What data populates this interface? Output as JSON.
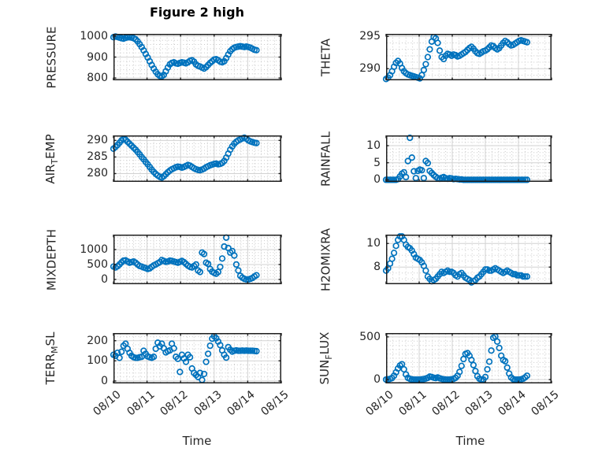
{
  "figure": {
    "title": "Figure 2 high",
    "xlabel": "Time",
    "xticklabels": [
      "08/10",
      "08/11",
      "08/12",
      "08/13",
      "08/14",
      "08/15"
    ],
    "xlim_days": [
      0,
      5
    ],
    "xminor_step_days": 0.2,
    "marker_color": "#0072BD",
    "text_color": "#262626",
    "axis_color": "#1f1f1f",
    "grid_color": "#d2d2d2",
    "minor_grid_color": "#c9c9c9",
    "background": "#ffffff"
  },
  "chart_data": [
    {
      "type": "scatter",
      "name": "PRESSURE",
      "ylabel_parts": {
        "pre": "PRESSURE",
        "sub": "",
        "post": ""
      },
      "position": {
        "row": 0,
        "col": "left"
      },
      "show_xticklabels": false,
      "ylim": [
        789,
        1011
      ],
      "yticks": [
        800,
        900,
        1000
      ],
      "yminor_step": 20,
      "x_start": 0,
      "x_step": 0.06,
      "values": [
        995,
        998,
        996,
        993,
        990,
        988,
        992,
        994,
        995,
        993,
        990,
        985,
        975,
        962,
        948,
        932,
        915,
        898,
        880,
        862,
        845,
        830,
        818,
        810,
        808,
        815,
        832,
        850,
        865,
        872,
        875,
        870,
        868,
        872,
        875,
        873,
        870,
        875,
        882,
        885,
        878,
        865,
        858,
        855,
        850,
        845,
        852,
        862,
        872,
        880,
        888,
        890,
        885,
        878,
        875,
        880,
        895,
        912,
        928,
        938,
        945,
        948,
        950,
        952,
        950,
        948,
        950,
        948,
        945,
        940,
        935,
        933
      ]
    },
    {
      "type": "scatter",
      "name": "THETA",
      "ylabel_parts": {
        "pre": "THETA",
        "sub": "",
        "post": ""
      },
      "position": {
        "row": 0,
        "col": "right"
      },
      "show_xticklabels": false,
      "ylim": [
        288.2,
        295.4
      ],
      "yticks": [
        290,
        295
      ],
      "yminor_step": 1,
      "x_start": 0,
      "x_step": 0.06,
      "values": [
        288.4,
        288.6,
        289.0,
        289.6,
        290.3,
        290.9,
        291.2,
        290.8,
        290.1,
        289.6,
        289.3,
        289.1,
        289.0,
        288.9,
        288.8,
        288.7,
        288.6,
        288.5,
        289.0,
        289.8,
        290.7,
        291.8,
        293.0,
        294.2,
        294.9,
        294.7,
        294.0,
        292.8,
        291.8,
        291.5,
        292.0,
        292.3,
        292.2,
        292.0,
        292.2,
        292.1,
        291.9,
        292.0,
        292.2,
        292.4,
        292.6,
        292.9,
        293.2,
        293.4,
        293.1,
        292.7,
        292.4,
        292.3,
        292.5,
        292.7,
        292.8,
        293.0,
        293.3,
        293.6,
        293.5,
        293.2,
        293.0,
        293.2,
        293.6,
        294.0,
        294.3,
        294.1,
        293.8,
        293.6,
        293.7,
        293.9,
        294.1,
        294.3,
        294.4,
        294.3,
        294.2,
        294.1
      ]
    },
    {
      "type": "scatter",
      "name": "AIR_TEMP",
      "ylabel_parts": {
        "pre": "AIR",
        "sub": "T",
        "post": "EMP"
      },
      "position": {
        "row": 1,
        "col": "left"
      },
      "show_xticklabels": false,
      "ylim": [
        277.5,
        291.5
      ],
      "yticks": [
        280,
        285,
        290
      ],
      "yminor_step": 1,
      "x_start": 0,
      "x_step": 0.06,
      "values": [
        287.5,
        288.0,
        288.6,
        289.3,
        290.0,
        290.4,
        290.2,
        289.6,
        289.0,
        288.4,
        287.8,
        287.2,
        286.5,
        285.8,
        285.0,
        284.3,
        283.5,
        282.8,
        282.0,
        281.2,
        280.5,
        279.9,
        279.4,
        279.0,
        278.8,
        279.2,
        279.8,
        280.4,
        280.9,
        281.3,
        281.6,
        281.9,
        282.1,
        282.0,
        281.8,
        282.0,
        282.3,
        282.6,
        282.4,
        282.0,
        281.6,
        281.3,
        281.1,
        281.0,
        281.2,
        281.5,
        281.9,
        282.2,
        282.5,
        282.7,
        282.9,
        283.0,
        282.8,
        282.9,
        283.2,
        283.8,
        284.8,
        286.0,
        287.2,
        288.2,
        289.0,
        289.6,
        290.0,
        290.3,
        290.6,
        290.8,
        290.5,
        290.0,
        289.7,
        289.5,
        289.3,
        289.2
      ]
    },
    {
      "type": "scatter",
      "name": "RAINFALL",
      "ylabel_parts": {
        "pre": "RAINFALL",
        "sub": "",
        "post": ""
      },
      "position": {
        "row": 1,
        "col": "right"
      },
      "show_xticklabels": false,
      "ylim": [
        -0.6,
        13.0
      ],
      "yticks": [
        0,
        5,
        10
      ],
      "yminor_step": 1,
      "x_start": 0,
      "x_step": 0.06,
      "values": [
        0,
        0,
        0,
        0,
        0,
        0,
        0.2,
        1.0,
        1.8,
        2.2,
        0.8,
        5.5,
        12.3,
        6.5,
        2.5,
        0.5,
        2.6,
        3.0,
        2.8,
        0.5,
        5.5,
        4.9,
        2.6,
        2.0,
        1.4,
        0.9,
        0.5,
        0.3,
        0.6,
        0.8,
        0.5,
        0.3,
        0.5,
        0.4,
        0.2,
        0.3,
        0.2,
        0.1,
        0.1,
        0,
        0,
        0,
        0,
        0,
        0,
        0,
        0,
        0,
        0,
        0,
        0,
        0,
        0,
        0,
        0,
        0,
        0,
        0,
        0,
        0,
        0,
        0,
        0,
        0,
        0,
        0,
        0,
        0,
        0,
        0,
        0,
        0
      ]
    },
    {
      "type": "scatter",
      "name": "MIXDEPTH",
      "ylabel_parts": {
        "pre": "MIXDEPTH",
        "sub": "",
        "post": ""
      },
      "position": {
        "row": 2,
        "col": "left"
      },
      "show_xticklabels": false,
      "ylim": [
        -160,
        1500
      ],
      "yticks": [
        0,
        500,
        1000
      ],
      "yminor_step": 100,
      "x_start": 0,
      "x_step": 0.06,
      "values": [
        430,
        400,
        440,
        500,
        570,
        630,
        640,
        600,
        560,
        580,
        600,
        560,
        500,
        450,
        430,
        400,
        380,
        350,
        370,
        420,
        470,
        500,
        540,
        580,
        650,
        620,
        590,
        600,
        630,
        620,
        600,
        580,
        560,
        590,
        620,
        580,
        520,
        460,
        420,
        400,
        450,
        500,
        300,
        250,
        900,
        850,
        560,
        520,
        350,
        260,
        220,
        190,
        250,
        420,
        700,
        1100,
        1400,
        1050,
        900,
        950,
        800,
        500,
        300,
        120,
        60,
        20,
        0,
        0,
        20,
        50,
        100,
        140
      ]
    },
    {
      "type": "scatter",
      "name": "H2OMIXRA",
      "ylabel_parts": {
        "pre": "H2OMIXRA",
        "sub": "",
        "post": ""
      },
      "position": {
        "row": 2,
        "col": "right"
      },
      "show_xticklabels": false,
      "ylim": [
        6.55,
        10.75
      ],
      "yticks": [
        8,
        10
      ],
      "yminor_step": 0.5,
      "x_start": 0,
      "x_step": 0.06,
      "values": [
        7.7,
        7.9,
        8.3,
        8.7,
        9.2,
        9.8,
        10.3,
        10.6,
        10.6,
        10.3,
        9.9,
        9.7,
        9.6,
        9.4,
        9.1,
        8.8,
        8.7,
        8.6,
        8.4,
        8.1,
        7.7,
        7.2,
        7.0,
        6.8,
        6.9,
        7.0,
        7.2,
        7.4,
        7.6,
        7.5,
        7.6,
        7.7,
        7.6,
        7.6,
        7.5,
        7.3,
        7.2,
        7.4,
        7.5,
        7.3,
        7.1,
        7.0,
        6.9,
        6.7,
        6.8,
        6.9,
        7.1,
        7.2,
        7.4,
        7.6,
        7.8,
        7.8,
        7.7,
        7.7,
        7.8,
        7.9,
        7.8,
        7.7,
        7.6,
        7.5,
        7.6,
        7.7,
        7.6,
        7.5,
        7.4,
        7.4,
        7.3,
        7.3,
        7.3,
        7.2,
        7.2,
        7.2
      ]
    },
    {
      "type": "scatter",
      "name": "TERR_MSL",
      "ylabel_parts": {
        "pre": "TERR",
        "sub": "M",
        "post": "SL"
      },
      "position": {
        "row": 3,
        "col": "left"
      },
      "show_xticklabels": true,
      "ylim": [
        -12,
        238
      ],
      "yticks": [
        0,
        100,
        200
      ],
      "yminor_step": 20,
      "x_start": 0,
      "x_step": 0.06,
      "values": [
        130,
        125,
        140,
        115,
        145,
        175,
        185,
        160,
        140,
        125,
        118,
        115,
        115,
        118,
        120,
        150,
        135,
        122,
        118,
        115,
        120,
        160,
        190,
        172,
        185,
        162,
        142,
        148,
        152,
        185,
        162,
        120,
        110,
        45,
        130,
        112,
        95,
        130,
        118,
        62,
        40,
        30,
        20,
        40,
        5,
        35,
        95,
        135,
        175,
        210,
        222,
        212,
        196,
        178,
        152,
        130,
        116,
        168,
        155,
        146,
        150,
        152,
        150,
        150,
        151,
        150,
        151,
        150,
        150,
        150,
        149,
        148
      ]
    },
    {
      "type": "scatter",
      "name": "SUN_FLUX",
      "ylabel_parts": {
        "pre": "SUN",
        "sub": "F",
        "post": "LUX"
      },
      "position": {
        "row": 3,
        "col": "right"
      },
      "show_xticklabels": true,
      "ylim": [
        -45,
        545
      ],
      "yticks": [
        0,
        500
      ],
      "yminor_step": 50,
      "x_start": 0,
      "x_step": 0.06,
      "values": [
        0,
        3,
        8,
        18,
        45,
        85,
        130,
        165,
        180,
        120,
        60,
        20,
        8,
        3,
        0,
        0,
        0,
        0,
        3,
        6,
        12,
        20,
        35,
        30,
        22,
        18,
        25,
        15,
        8,
        3,
        0,
        0,
        0,
        3,
        8,
        20,
        45,
        90,
        160,
        240,
        300,
        310,
        280,
        230,
        170,
        100,
        40,
        10,
        0,
        0,
        30,
        120,
        210,
        340,
        490,
        505,
        445,
        370,
        280,
        230,
        215,
        140,
        70,
        25,
        5,
        0,
        0,
        0,
        3,
        10,
        25,
        45
      ]
    }
  ]
}
